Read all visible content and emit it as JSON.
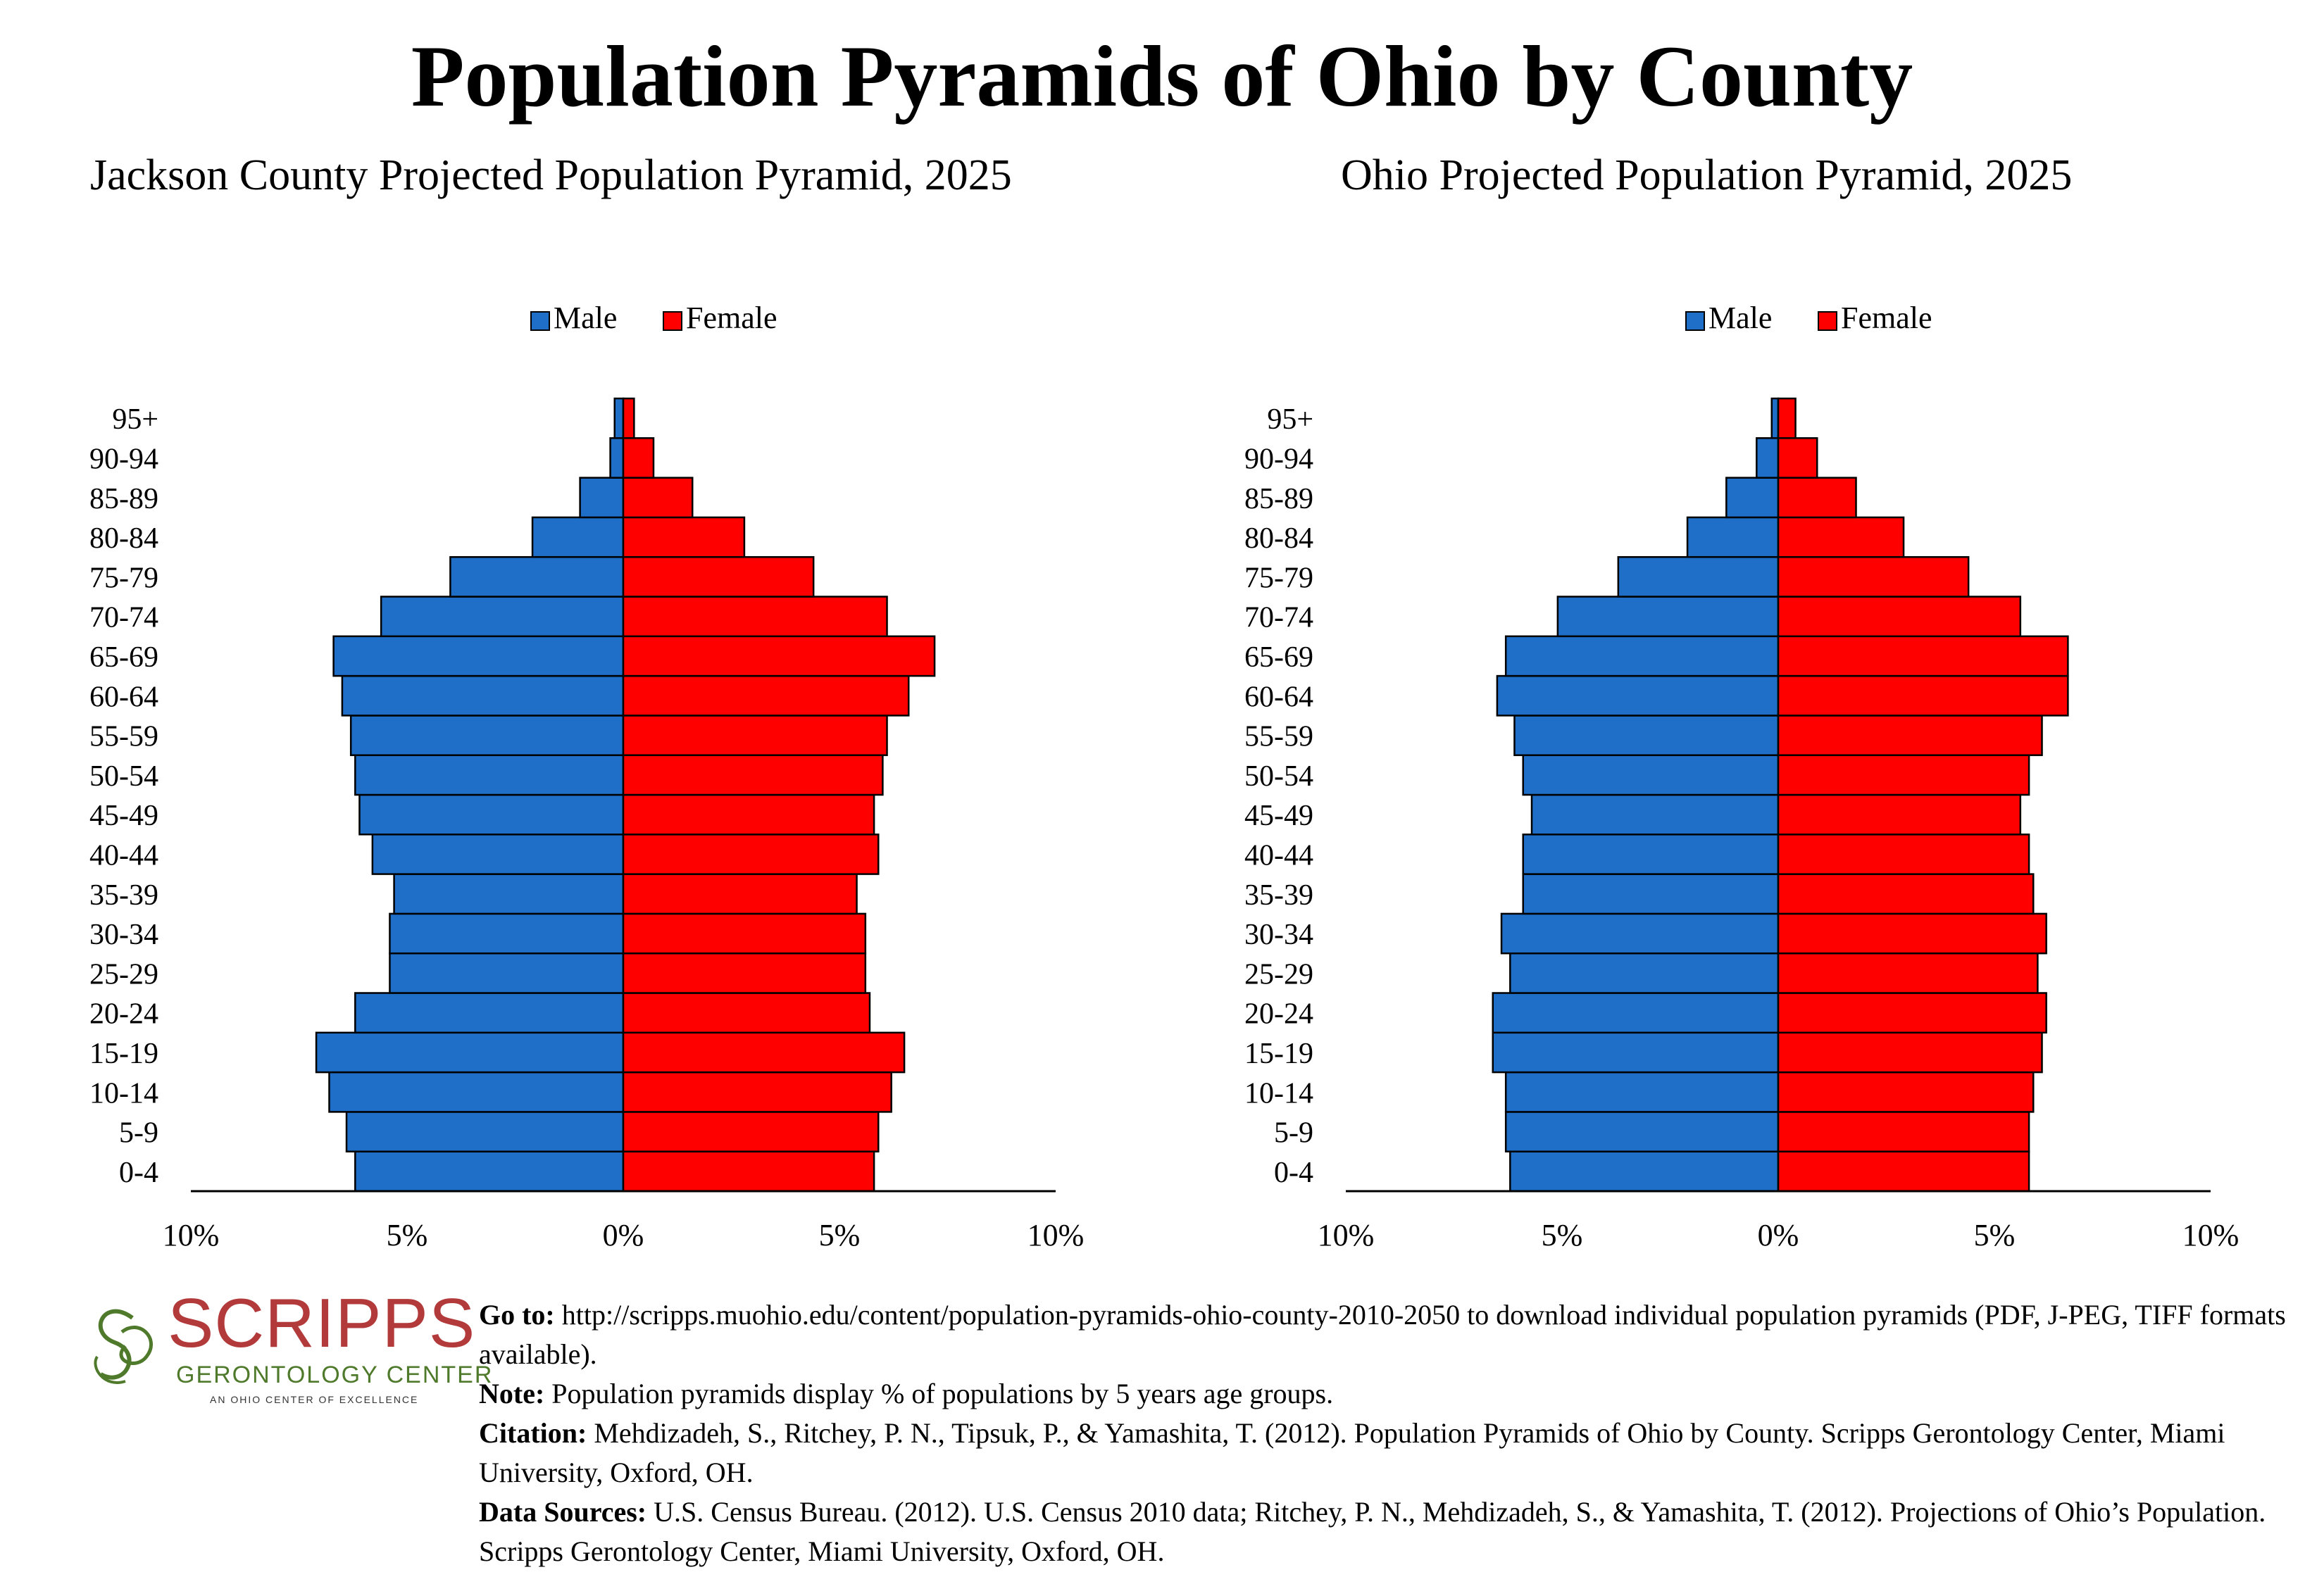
{
  "title": "Population Pyramids of Ohio by County",
  "legend": {
    "male_label": "Male",
    "female_label": "Female"
  },
  "colors": {
    "male": "#1f6fc8",
    "female": "#ff0000",
    "axis": "#000000",
    "logo_red": "#b23a3a",
    "logo_green": "#4f7a2b"
  },
  "chart_data": [
    {
      "type": "bar",
      "orientation": "horizontal-population-pyramid",
      "title": "Jackson County Projected Population Pyramid, 2025",
      "categories": [
        "0-4",
        "5-9",
        "10-14",
        "15-19",
        "20-24",
        "25-29",
        "30-34",
        "35-39",
        "40-44",
        "45-49",
        "50-54",
        "55-59",
        "60-64",
        "65-69",
        "70-74",
        "75-79",
        "80-84",
        "85-89",
        "90-94",
        "95+"
      ],
      "series": [
        {
          "name": "Male",
          "values": [
            6.2,
            6.4,
            6.8,
            7.1,
            6.2,
            5.4,
            5.4,
            5.3,
            5.8,
            6.1,
            6.2,
            6.3,
            6.5,
            6.7,
            5.6,
            4.0,
            2.1,
            1.0,
            0.3,
            0.2
          ]
        },
        {
          "name": "Female",
          "values": [
            5.8,
            5.9,
            6.2,
            6.5,
            5.7,
            5.6,
            5.6,
            5.4,
            5.9,
            5.8,
            6.0,
            6.1,
            6.6,
            7.2,
            6.1,
            4.4,
            2.8,
            1.6,
            0.7,
            0.25
          ]
        }
      ],
      "xlim": [
        -10,
        10
      ],
      "xticks": [
        "10%",
        "5%",
        "0%",
        "5%",
        "10%"
      ],
      "legend": "top-center"
    },
    {
      "type": "bar",
      "orientation": "horizontal-population-pyramid",
      "title": "Ohio Projected Population Pyramid, 2025",
      "categories": [
        "0-4",
        "5-9",
        "10-14",
        "15-19",
        "20-24",
        "25-29",
        "30-34",
        "35-39",
        "40-44",
        "45-49",
        "50-54",
        "55-59",
        "60-64",
        "65-69",
        "70-74",
        "75-79",
        "80-84",
        "85-89",
        "90-94",
        "95+"
      ],
      "series": [
        {
          "name": "Male",
          "values": [
            6.2,
            6.3,
            6.3,
            6.6,
            6.6,
            6.2,
            6.4,
            5.9,
            5.9,
            5.7,
            5.9,
            6.1,
            6.5,
            6.3,
            5.1,
            3.7,
            2.1,
            1.2,
            0.5,
            0.15
          ]
        },
        {
          "name": "Female",
          "values": [
            5.8,
            5.8,
            5.9,
            6.1,
            6.2,
            6.0,
            6.2,
            5.9,
            5.8,
            5.6,
            5.8,
            6.1,
            6.7,
            6.7,
            5.6,
            4.4,
            2.9,
            1.8,
            0.9,
            0.4
          ]
        }
      ],
      "xlim": [
        -10,
        10
      ],
      "xticks": [
        "10%",
        "5%",
        "0%",
        "5%",
        "10%"
      ],
      "legend": "top-center"
    }
  ],
  "logo": {
    "name": "SCRIPPS",
    "subtitle": "GERONTOLOGY CENTER",
    "tagline": "AN OHIO CENTER OF EXCELLENCE"
  },
  "footnotes": {
    "goto_label": "Go to:",
    "goto_text": " http://scripps.muohio.edu/content/population-pyramids-ohio-county-2010-2050 to download individual population pyramids (PDF, J-PEG, TIFF formats available).",
    "note_label": "Note:",
    "note_text": " Population pyramids display % of populations by 5 years age groups.",
    "citation_label": "Citation:",
    "citation_text": " Mehdizadeh, S., Ritchey, P. N., Tipsuk, P., & Yamashita, T. (2012). Population Pyramids of Ohio by County. Scripps Gerontology Center, Miami University, Oxford, OH.",
    "sources_label": "Data Sources:",
    "sources_text": " U.S. Census Bureau. (2012). U.S. Census 2010 data; Ritchey, P. N., Mehdizadeh, S., & Yamashita, T. (2012). Projections of Ohio’s Population. Scripps Gerontology Center, Miami University, Oxford, OH."
  }
}
